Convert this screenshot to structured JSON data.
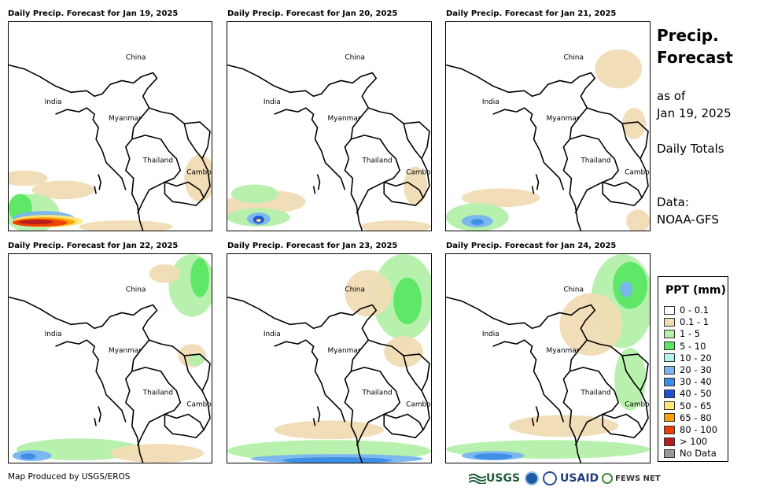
{
  "panels": [
    {
      "title": "Daily Precip. Forecast for Jan 19, 2025",
      "day": 0
    },
    {
      "title": "Daily Precip. Forecast for Jan 20, 2025",
      "day": 1
    },
    {
      "title": "Daily Precip. Forecast for Jan 21, 2025",
      "day": 2
    },
    {
      "title": "Daily Precip. Forecast for Jan 22, 2025",
      "day": 3
    },
    {
      "title": "Daily Precip. Forecast for Jan 23, 2025",
      "day": 4
    },
    {
      "title": "Daily Precip. Forecast for Jan 24, 2025",
      "day": 5
    }
  ],
  "map_labels": {
    "china": "China",
    "india": "India",
    "myanmar": "Myanmar",
    "thailand": "Thailand",
    "cambodia": "Cambodia"
  },
  "sidebar": {
    "title_line1": "Precip.",
    "title_line2": "Forecast",
    "as_of": "as of",
    "date": "Jan 19, 2025",
    "totals": "Daily Totals",
    "data_label": "Data:",
    "data_source": "NOAA-GFS"
  },
  "legend": {
    "title": "PPT (mm)",
    "items": [
      {
        "label": "0 - 0.1",
        "color": "#ffffff"
      },
      {
        "label": "0.1 - 1",
        "color": "#f0dcb4"
      },
      {
        "label": "1 - 5",
        "color": "#b4f0aa"
      },
      {
        "label": "5 - 10",
        "color": "#5ae664"
      },
      {
        "label": "10 - 20",
        "color": "#b4f0f0"
      },
      {
        "label": "20 - 30",
        "color": "#78b4f0"
      },
      {
        "label": "30 - 40",
        "color": "#3c8ce6"
      },
      {
        "label": "40 - 50",
        "color": "#1e50d2"
      },
      {
        "label": "50 - 65",
        "color": "#ffe678"
      },
      {
        "label": "65 - 80",
        "color": "#ffa000"
      },
      {
        "label": "80 - 100",
        "color": "#f03c00"
      },
      {
        "label": "> 100",
        "color": "#b41e1e"
      },
      {
        "label": "No Data",
        "color": "#999999"
      }
    ]
  },
  "footer": {
    "credit": "Map Produced by USGS/EROS",
    "logo_usgs": "USGS",
    "logo_usaid": "USAID",
    "logo_fews": "FEWS NET"
  }
}
